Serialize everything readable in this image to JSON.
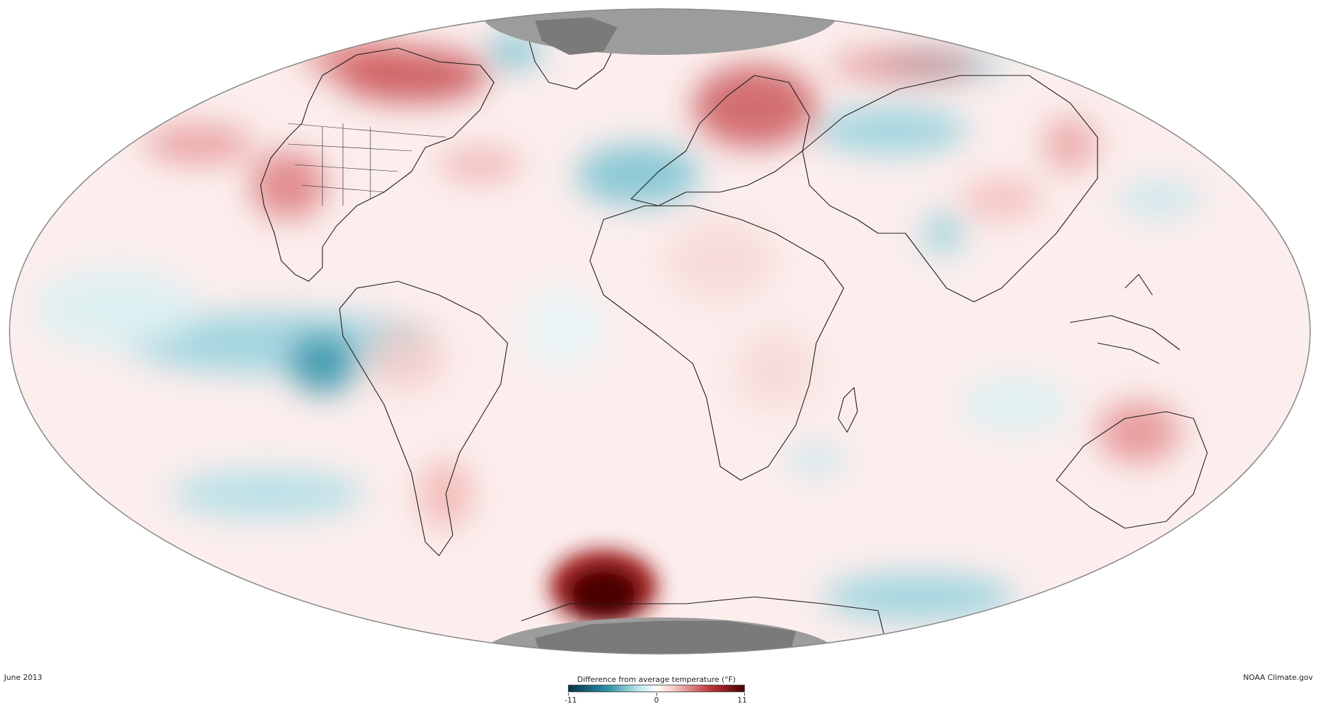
{
  "map": {
    "projection": "mollweide",
    "date": "June 2013",
    "credit": "NOAA Climate.gov",
    "no_data_color": "#9c9c9c",
    "land_outline_color": "#1a1a1a"
  },
  "legend": {
    "title": "Difference from average temperature (°F)",
    "min_label": "-11",
    "mid_label": "0",
    "max_label": "11",
    "colors": [
      "#06324a",
      "#2b8fa6",
      "#8fd0dc",
      "#ffffff",
      "#f0a9a5",
      "#c0393c",
      "#4a0000"
    ]
  },
  "anomalies": [
    {
      "region": "Western Canada / Alaska",
      "level": "warm",
      "strength": 0.8
    },
    {
      "region": "Western United States",
      "level": "warm",
      "strength": 0.6
    },
    {
      "region": "North Pacific",
      "level": "warm",
      "strength": 0.5
    },
    {
      "region": "Hudson Bay / Labrador",
      "level": "cool",
      "strength": 0.4
    },
    {
      "region": "North Atlantic",
      "level": "warm",
      "strength": 0.4
    },
    {
      "region": "Western Europe / Iberia",
      "level": "cool",
      "strength": 0.5
    },
    {
      "region": "Scandinavia / Western Russia",
      "level": "warm",
      "strength": 0.8
    },
    {
      "region": "Central Asia / Kazakhstan",
      "level": "cool",
      "strength": 0.5
    },
    {
      "region": "Siberia",
      "level": "warm",
      "strength": 0.5
    },
    {
      "region": "Eastern Tropical Pacific",
      "level": "cool",
      "strength": 0.7
    },
    {
      "region": "Southern Chile / Argentina",
      "level": "warm",
      "strength": 0.4
    },
    {
      "region": "Australia",
      "level": "warm",
      "strength": 0.5
    },
    {
      "region": "Antarctic Peninsula",
      "level": "warm",
      "strength": 1.0
    },
    {
      "region": "Southern Ocean south of Australia",
      "level": "cool",
      "strength": 0.5
    }
  ]
}
